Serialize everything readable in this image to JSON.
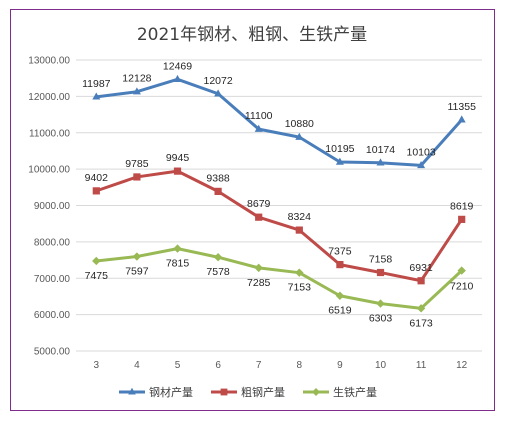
{
  "chart_data": {
    "type": "line",
    "title": "2021年钢材、粗钢、生铁产量",
    "categories": [
      "3",
      "4",
      "5",
      "6",
      "7",
      "8",
      "9",
      "10",
      "11",
      "12"
    ],
    "ylim": [
      5000,
      13000
    ],
    "ytick_step": 1000,
    "ytick_labels": [
      "5000.00",
      "6000.00",
      "7000.00",
      "8000.00",
      "9000.00",
      "10000.00",
      "11000.00",
      "12000.00",
      "13000.00"
    ],
    "grid": true,
    "legend_position": "bottom",
    "series": [
      {
        "name": "钢材产量",
        "color": "#4a7ebb",
        "marker": "triangle",
        "values": [
          11987,
          12128,
          12469,
          12072,
          11100,
          10880,
          10195,
          10174,
          10103,
          11355
        ]
      },
      {
        "name": "粗钢产量",
        "color": "#be4b48",
        "marker": "square",
        "values": [
          9402,
          9785,
          9945,
          9388,
          8679,
          8324,
          7375,
          7158,
          6931,
          8619
        ]
      },
      {
        "name": "生铁产量",
        "color": "#98b954",
        "marker": "diamond",
        "values": [
          7475,
          7597,
          7815,
          7578,
          7285,
          7153,
          6519,
          6303,
          6173,
          7210
        ]
      }
    ]
  }
}
